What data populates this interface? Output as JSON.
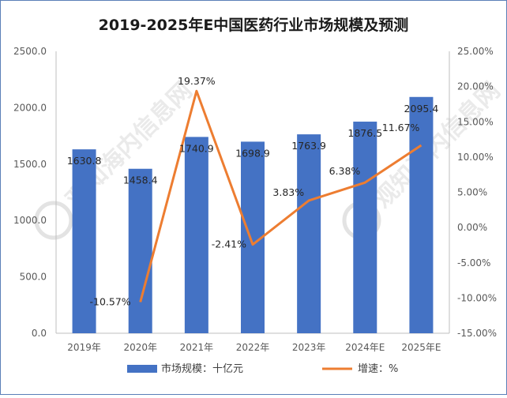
{
  "chart_data": {
    "type": "bar",
    "title": "2019-2025年E中国医药行业市场规模及预测",
    "categories": [
      "2019年",
      "2020年",
      "2021年",
      "2022年",
      "2023年",
      "2024年E",
      "2025年E"
    ],
    "series": [
      {
        "name": "市场规模：十亿元",
        "type": "bar",
        "axis": "left",
        "color": "#4472c4",
        "values": [
          1630.8,
          1458.4,
          1740.9,
          1698.9,
          1763.9,
          1876.5,
          2095.4
        ],
        "labels": [
          "1630.8",
          "1458.4",
          "1740.9",
          "1698.9",
          "1763.9",
          "1876.5",
          "2095.4"
        ]
      },
      {
        "name": "增速：%",
        "type": "line",
        "axis": "right",
        "color": "#ed7d31",
        "values": [
          null,
          -10.57,
          19.37,
          -2.41,
          3.83,
          6.38,
          11.67
        ],
        "labels": [
          "",
          "-10.57%",
          "19.37%",
          "-2.41%",
          "3.83%",
          "6.38%",
          "11.67%"
        ]
      }
    ],
    "y_left": {
      "lim": [
        0,
        2500
      ],
      "ticks": [
        "0.0",
        "500.0",
        "1000.0",
        "1500.0",
        "2000.0",
        "2500.0"
      ]
    },
    "y_right": {
      "lim": [
        -15,
        25
      ],
      "ticks": [
        "-15.00%",
        "-10.00%",
        "-5.00%",
        "0.00%",
        "5.00%",
        "10.00%",
        "15.00%",
        "20.00%",
        "25.00%"
      ]
    },
    "grid": false,
    "legend_position": "bottom",
    "watermark": "观知海内信息网"
  }
}
